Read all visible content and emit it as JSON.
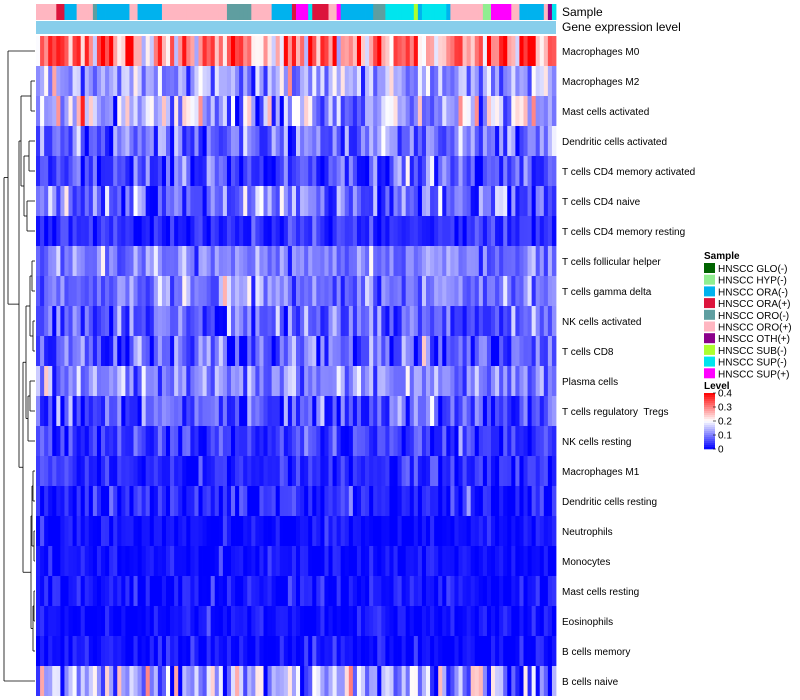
{
  "chart_data": {
    "type": "heatmap",
    "title": "",
    "annotation_rows": [
      "Sample",
      "Gene expression level"
    ],
    "rows": [
      "Macrophages M0",
      "Macrophages M2",
      "Mast cells activated",
      "Dendritic cells activated",
      "T cells CD4 memory activated",
      "T cells CD4 naive",
      "T cells CD4 memory resting",
      "T cells follicular helper",
      "T cells gamma delta",
      "NK cells activated",
      "T cells CD8",
      "Plasma cells",
      "T cells regulatory  Tregs",
      "NK cells resting",
      "Macrophages M1",
      "Dendritic cells resting",
      "Neutrophils",
      "Monocytes",
      "Mast cells resting",
      "Eosinophils",
      "B cells memory",
      "B cells naive"
    ],
    "row_mean_level": [
      0.3,
      0.12,
      0.14,
      0.08,
      0.06,
      0.09,
      0.03,
      0.1,
      0.09,
      0.07,
      0.07,
      0.1,
      0.06,
      0.04,
      0.03,
      0.02,
      0.01,
      0.01,
      0.01,
      0.01,
      0.01,
      0.12
    ],
    "row_variability": [
      0.1,
      0.06,
      0.09,
      0.06,
      0.06,
      0.07,
      0.03,
      0.04,
      0.05,
      0.05,
      0.06,
      0.05,
      0.06,
      0.04,
      0.03,
      0.04,
      0.02,
      0.02,
      0.03,
      0.02,
      0.03,
      0.1
    ],
    "n_samples": 128,
    "sample_legend": {
      "title": "Sample",
      "items": [
        {
          "label": "HNSCC GLO(-)",
          "color": "#006400"
        },
        {
          "label": "HNSCC HYP(-)",
          "color": "#90ee90"
        },
        {
          "label": "HNSCC ORA(-)",
          "color": "#00b2ee"
        },
        {
          "label": "HNSCC ORA(+)",
          "color": "#dc143c"
        },
        {
          "label": "HNSCC ORO(-)",
          "color": "#5f9ea0"
        },
        {
          "label": "HNSCC ORO(+)",
          "color": "#ffb6c1"
        },
        {
          "label": "HNSCC OTH(+)",
          "color": "#8b008b"
        },
        {
          "label": "HNSCC SUB(-)",
          "color": "#adff2f"
        },
        {
          "label": "HNSCC SUP(-)",
          "color": "#00e5ee"
        },
        {
          "label": "HNSCC SUP(+)",
          "color": "#ff00ff"
        }
      ]
    },
    "level_legend": {
      "title": "Level",
      "ticks": [
        "0.4",
        "0.3",
        "0.2",
        "0.1",
        "0"
      ],
      "range": [
        0,
        0.4
      ],
      "colors": [
        "#0000ff",
        "#ffffff",
        "#ff0000"
      ]
    },
    "gene_expression_color": "#87ceeb"
  }
}
